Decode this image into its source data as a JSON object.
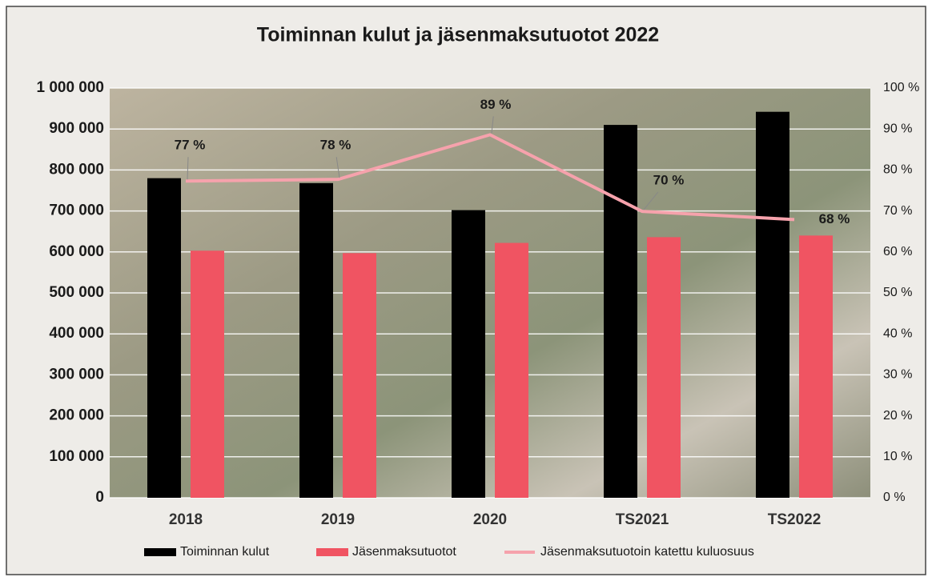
{
  "chart_data": {
    "type": "bar",
    "title": "Toiminnan kulut ja jäsenmaksutuotot  2022",
    "categories": [
      "2018",
      "2019",
      "2020",
      "TS2021",
      "TS2022"
    ],
    "series": [
      {
        "name": "Toiminnan kulut",
        "color": "#000000",
        "type": "bar",
        "values": [
          780000,
          768000,
          702000,
          910000,
          942000
        ]
      },
      {
        "name": "Jäsenmaksutuotot",
        "color": "#f05462",
        "type": "bar",
        "values": [
          603000,
          597000,
          622000,
          636000,
          640000
        ]
      },
      {
        "name": "Jäsenmaksutuotoin katettu kuluosuus",
        "color": "#f6a2ac",
        "type": "line",
        "axis": "y2",
        "values": [
          77.3,
          77.7,
          88.6,
          69.9,
          67.9
        ],
        "value_labels": [
          "77 %",
          "78 %",
          "89 %",
          "70 %",
          "68 %"
        ]
      }
    ],
    "ylim": [
      0,
      1000000
    ],
    "yticks": [
      0,
      {
        "value": 100000,
        "label": "100 000"
      },
      {
        "value": 200000,
        "label": "200 000"
      },
      {
        "value": 300000,
        "label": "300 000"
      },
      {
        "value": 400000,
        "label": "400 000"
      },
      {
        "value": 500000,
        "label": "500 000"
      },
      {
        "value": 600000,
        "label": "600 000"
      },
      {
        "value": 700000,
        "label": "700 000"
      },
      {
        "value": 800000,
        "label": "800 000"
      },
      {
        "value": 900000,
        "label": "900 000"
      },
      {
        "value": 1000000,
        "label": "1 000 000"
      }
    ],
    "y2lim": [
      0,
      100
    ],
    "y2ticks": [
      {
        "value": 0,
        "label": "0 %"
      },
      {
        "value": 10,
        "label": "10 %"
      },
      {
        "value": 20,
        "label": "20 %"
      },
      {
        "value": 30,
        "label": "30 %"
      },
      {
        "value": 40,
        "label": "40 %"
      },
      {
        "value": 50,
        "label": "50 %"
      },
      {
        "value": 60,
        "label": "60 %"
      },
      {
        "value": 70,
        "label": "70 %"
      },
      {
        "value": 80,
        "label": "80 %"
      },
      {
        "value": 90,
        "label": "90 %"
      },
      {
        "value": 100,
        "label": "100 %"
      }
    ],
    "grid": true,
    "legend": "bottom"
  }
}
